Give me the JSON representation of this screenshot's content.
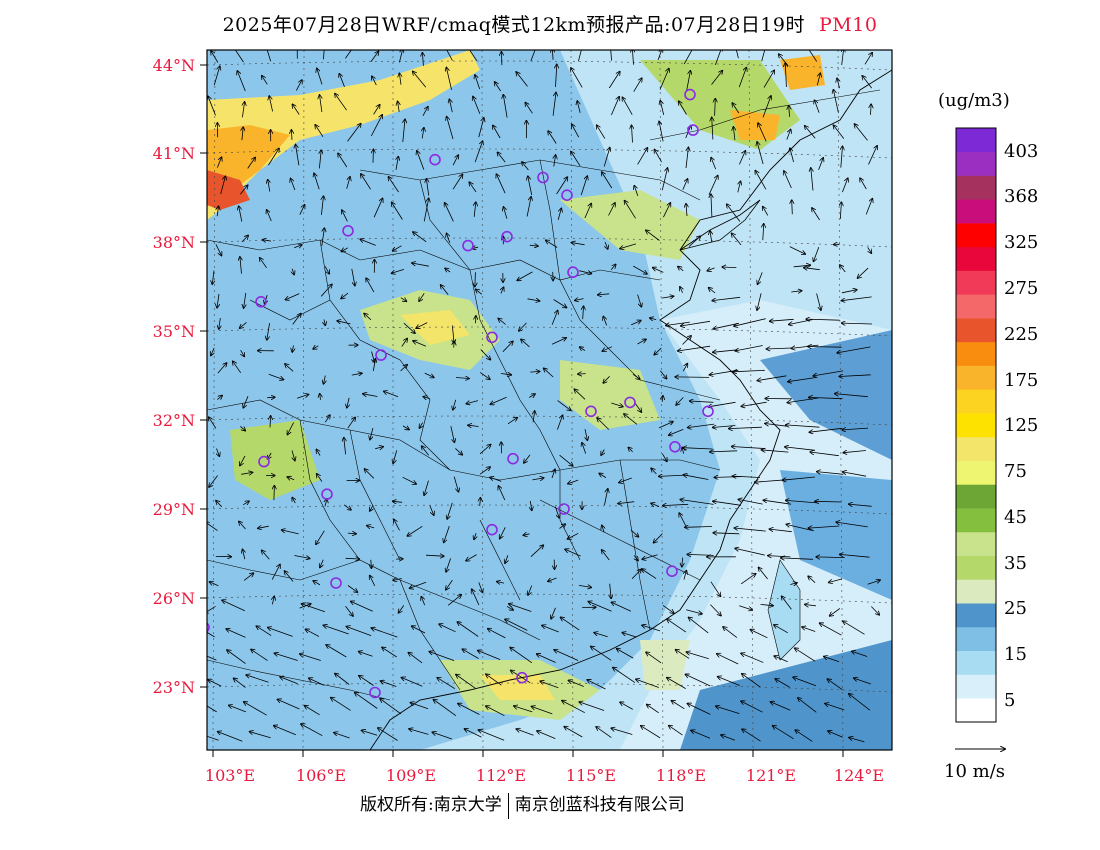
{
  "title": {
    "main": "2025年07月28日WRF/cmaq模式12km预报产品:07月28日19时",
    "product": "PM10"
  },
  "axes": {
    "lat_labels": [
      "44°N",
      "41°N",
      "38°N",
      "35°N",
      "32°N",
      "29°N",
      "26°N",
      "23°N"
    ],
    "lon_labels": [
      "103°E",
      "106°E",
      "109°E",
      "112°E",
      "115°E",
      "118°E",
      "121°E",
      "124°E"
    ]
  },
  "legend": {
    "unit": "(ug/m3)",
    "levels": [
      "403",
      "368",
      "325",
      "275",
      "225",
      "175",
      "125",
      "75",
      "45",
      "35",
      "25",
      "15",
      "5"
    ],
    "colors": [
      "#ffffff",
      "#d9f0fa",
      "#a7dcf3",
      "#7fbfe6",
      "#4f95cc",
      "#dcebbf",
      "#b5d86b",
      "#c8e38c",
      "#84bf3d",
      "#6ea635",
      "#eef570",
      "#f3e56a",
      "#fde200",
      "#fcd321",
      "#f9b42c",
      "#f98d10",
      "#e8552d",
      "#f5686a",
      "#f03a57",
      "#e8063a",
      "#ff0000",
      "#c90e7c",
      "#a5315f",
      "#9b2fc2",
      "#7e29d6"
    ]
  },
  "wind_reference": {
    "label": "10 m/s"
  },
  "monitoring_sites": [
    {
      "lon": 110.4,
      "lat": 40.8
    },
    {
      "lon": 114.0,
      "lat": 40.2
    },
    {
      "lon": 114.8,
      "lat": 39.6
    },
    {
      "lon": 107.5,
      "lat": 38.4
    },
    {
      "lon": 111.5,
      "lat": 37.9
    },
    {
      "lon": 112.8,
      "lat": 38.2
    },
    {
      "lon": 115.0,
      "lat": 37.0
    },
    {
      "lon": 118.9,
      "lat": 43.0
    },
    {
      "lon": 119.0,
      "lat": 41.8
    },
    {
      "lon": 104.6,
      "lat": 36.0
    },
    {
      "lon": 112.3,
      "lat": 34.8
    },
    {
      "lon": 108.6,
      "lat": 34.2
    },
    {
      "lon": 115.6,
      "lat": 32.3
    },
    {
      "lon": 116.9,
      "lat": 32.6
    },
    {
      "lon": 119.5,
      "lat": 32.3
    },
    {
      "lon": 118.4,
      "lat": 31.1
    },
    {
      "lon": 113.0,
      "lat": 30.7
    },
    {
      "lon": 104.7,
      "lat": 30.6
    },
    {
      "lon": 106.8,
      "lat": 29.5
    },
    {
      "lon": 114.7,
      "lat": 29.0
    },
    {
      "lon": 112.3,
      "lat": 28.3
    },
    {
      "lon": 118.3,
      "lat": 26.9
    },
    {
      "lon": 107.1,
      "lat": 26.5
    },
    {
      "lon": 102.7,
      "lat": 25.0
    },
    {
      "lon": 108.4,
      "lat": 22.8
    },
    {
      "lon": 113.3,
      "lat": 23.3
    }
  ],
  "footer": {
    "left": "版权所有:南京大学",
    "right": "南京创蓝科技有限公司"
  }
}
